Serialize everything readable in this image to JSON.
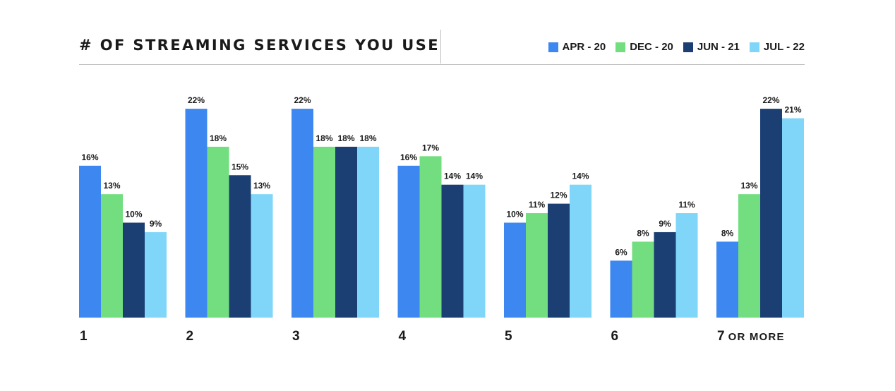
{
  "chart_data": {
    "type": "bar",
    "title": "# OF STREAMING SERVICES YOU USE",
    "categories": [
      {
        "main": "1",
        "suffix": ""
      },
      {
        "main": "2",
        "suffix": ""
      },
      {
        "main": "3",
        "suffix": ""
      },
      {
        "main": "4",
        "suffix": ""
      },
      {
        "main": "5",
        "suffix": ""
      },
      {
        "main": "6",
        "suffix": ""
      },
      {
        "main": "7",
        "suffix": "OR MORE"
      }
    ],
    "series": [
      {
        "name": "APR - 20",
        "color": "#3d87f0",
        "values": [
          16,
          22,
          22,
          16,
          10,
          6,
          8
        ]
      },
      {
        "name": "DEC - 20",
        "color": "#73de80",
        "values": [
          13,
          18,
          18,
          17,
          11,
          8,
          13
        ]
      },
      {
        "name": "JUN - 21",
        "color": "#1b3f73",
        "values": [
          10,
          15,
          18,
          14,
          12,
          9,
          22
        ]
      },
      {
        "name": "JUL - 22",
        "color": "#80d6f8",
        "values": [
          9,
          13,
          18,
          14,
          14,
          11,
          21
        ]
      }
    ],
    "value_suffix": "%",
    "ylim": [
      0,
      22
    ],
    "grid": false,
    "legend_position": "top-right"
  }
}
